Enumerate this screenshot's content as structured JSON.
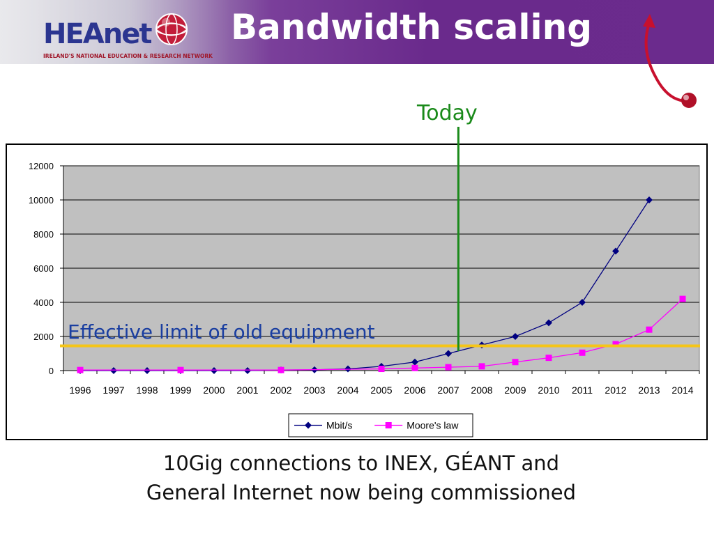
{
  "header": {
    "logo_text": "HEAnet",
    "logo_tagline": "IRELAND'S NATIONAL EDUCATION & RESEARCH NETWORK",
    "title": "Bandwidth scaling",
    "banner_color": "#6b2b8d",
    "logo_color": "#2b3590"
  },
  "annotations": {
    "today_label": "Today",
    "today_year": 2007.3,
    "today_color": "#1a8a1a",
    "limit_label": "Effective limit of old equipment",
    "limit_value": 1450,
    "limit_color": "#f5c518",
    "limit_text_color": "#1a3ea0"
  },
  "caption": {
    "line1": "10Gig connections to INEX, GÉANT and",
    "line2": "General Internet now being commissioned"
  },
  "chart_data": {
    "type": "line",
    "title": "",
    "xlabel": "",
    "ylabel": "",
    "categories": [
      "1996",
      "1997",
      "1998",
      "1999",
      "2000",
      "2001",
      "2002",
      "2003",
      "2004",
      "2005",
      "2006",
      "2007",
      "2008",
      "2009",
      "2010",
      "2011",
      "2012",
      "2013",
      "2014"
    ],
    "ylim": [
      0,
      12000
    ],
    "yticks": [
      "0",
      "2000",
      "4000",
      "6000",
      "8000",
      "10000",
      "12000"
    ],
    "grid": true,
    "plot_background": "#c0c0c0",
    "legend": "bottom",
    "series": [
      {
        "name": "Mbit/s",
        "color": "#000080",
        "marker": "diamond",
        "values": [
          2,
          2,
          2,
          2,
          2,
          2,
          34,
          45,
          100,
          250,
          500,
          1000,
          1500,
          2000,
          2800,
          4000,
          7000,
          10000,
          null
        ]
      },
      {
        "name": "Moore's law",
        "color": "#ff00ff",
        "marker": "square",
        "values": [
          34,
          null,
          null,
          34,
          null,
          null,
          34,
          null,
          null,
          100,
          150,
          200,
          250,
          500,
          750,
          1050,
          1550,
          2400,
          4200
        ]
      }
    ]
  }
}
